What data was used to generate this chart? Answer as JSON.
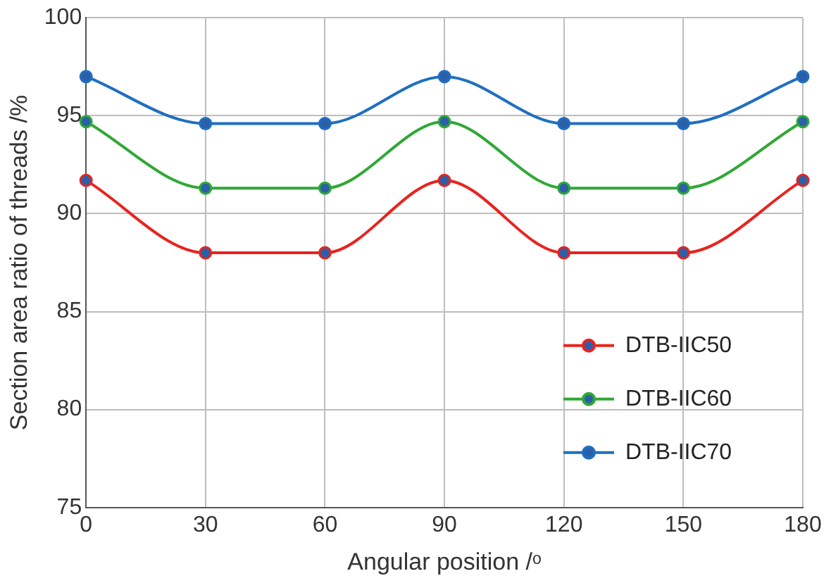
{
  "chart_data": {
    "type": "line",
    "xlabel": "Angular position /ᵒ",
    "ylabel": "Section area ratio of threads /%",
    "x": [
      0,
      30,
      60,
      90,
      120,
      150,
      180
    ],
    "series": [
      {
        "name": "DTB-IIC50",
        "color": "#e8231f",
        "values": [
          91.7,
          88,
          88,
          91.7,
          88,
          88,
          91.7
        ]
      },
      {
        "name": "DTB-IIC60",
        "color": "#2fa836",
        "values": [
          94.7,
          91.3,
          91.3,
          94.7,
          91.3,
          91.3,
          94.7
        ]
      },
      {
        "name": "DTB-IIC70",
        "color": "#1f6fc0",
        "values": [
          97,
          94.6,
          94.6,
          97,
          94.6,
          94.6,
          97
        ]
      }
    ],
    "xlim": [
      0,
      180
    ],
    "xticks": [
      0,
      30,
      60,
      90,
      120,
      150,
      180
    ],
    "ylim": [
      75,
      100
    ],
    "yticks": [
      75,
      80,
      85,
      90,
      95,
      100
    ],
    "grid": true,
    "legend": "bottom right",
    "marker": "circle",
    "line_style": "solid"
  }
}
